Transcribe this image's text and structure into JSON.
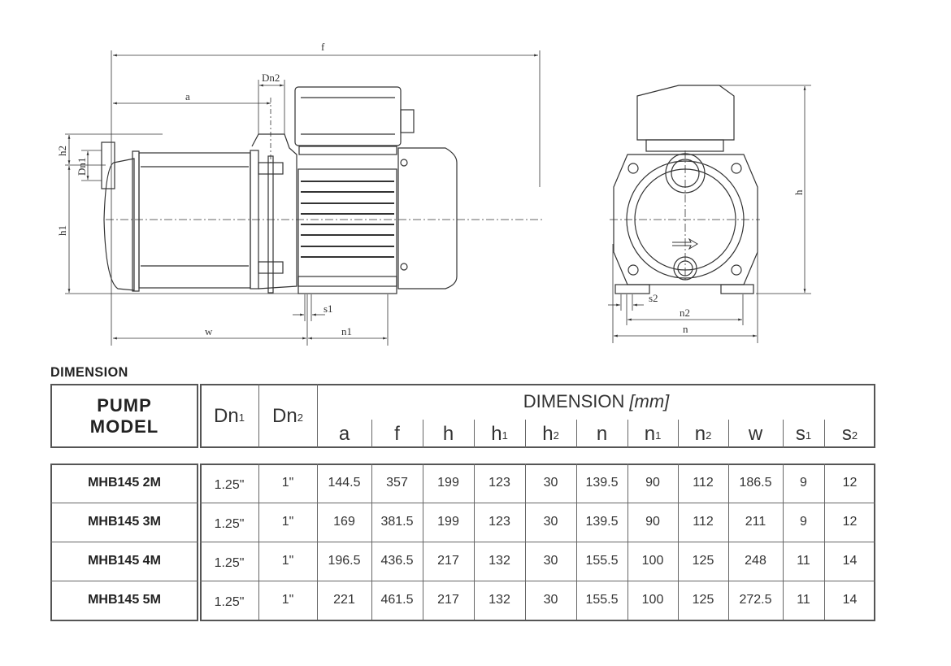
{
  "drawing": {
    "side_labels": {
      "f": "f",
      "a": "a",
      "dn2": "Dn2",
      "h2": "h2",
      "dn1": "Dn1",
      "h1": "h1",
      "s1": "s1",
      "w": "w",
      "n1": "n1"
    },
    "front_labels": {
      "h": "h",
      "s2": "s2",
      "n2": "n2",
      "n": "n"
    }
  },
  "section_title": "DIMENSION",
  "table": {
    "model_header": [
      "PUMP",
      "MODEL"
    ],
    "dn1": {
      "base": "Dn",
      "sub": "1"
    },
    "dn2": {
      "base": "Dn",
      "sub": "2"
    },
    "group_header": "DIMENSION",
    "group_unit": "[mm]",
    "columns": [
      {
        "base": "a",
        "sub": ""
      },
      {
        "base": "f",
        "sub": ""
      },
      {
        "base": "h",
        "sub": ""
      },
      {
        "base": "h",
        "sub": "1"
      },
      {
        "base": "h",
        "sub": "2"
      },
      {
        "base": "n",
        "sub": ""
      },
      {
        "base": "n",
        "sub": "1"
      },
      {
        "base": "n",
        "sub": "2"
      },
      {
        "base": "w",
        "sub": ""
      },
      {
        "base": "s",
        "sub": "1"
      },
      {
        "base": "s",
        "sub": "2"
      }
    ],
    "rows": [
      {
        "model": "MHB145 2M",
        "dn1": "1.25\"",
        "dn2": "1\"",
        "values": [
          "144.5",
          "357",
          "199",
          "123",
          "30",
          "139.5",
          "90",
          "112",
          "186.5",
          "9",
          "12"
        ]
      },
      {
        "model": "MHB145 3M",
        "dn1": "1.25\"",
        "dn2": "1\"",
        "values": [
          "169",
          "381.5",
          "199",
          "123",
          "30",
          "139.5",
          "90",
          "112",
          "211",
          "9",
          "12"
        ]
      },
      {
        "model": "MHB145 4M",
        "dn1": "1.25\"",
        "dn2": "1\"",
        "values": [
          "196.5",
          "436.5",
          "217",
          "132",
          "30",
          "155.5",
          "100",
          "125",
          "248",
          "11",
          "14"
        ]
      },
      {
        "model": "MHB145 5M",
        "dn1": "1.25\"",
        "dn2": "1\"",
        "values": [
          "221",
          "461.5",
          "217",
          "132",
          "30",
          "155.5",
          "100",
          "125",
          "272.5",
          "11",
          "14"
        ]
      }
    ]
  }
}
